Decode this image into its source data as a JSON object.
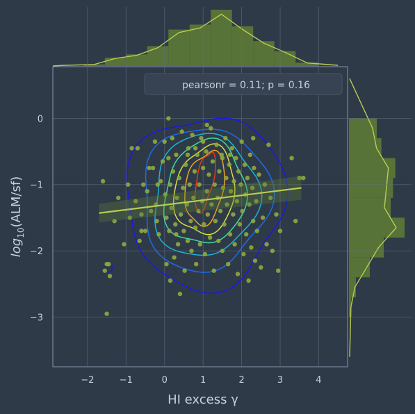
{
  "chart_data": {
    "type": "scatter",
    "subtype": "jointplot-kde",
    "title": "",
    "xlabel": "HI excess γ",
    "ylabel_main": "log",
    "ylabel_sub": "10",
    "ylabel_rest": "(ALM/sf)",
    "xlim": [
      -2.9,
      4.75
    ],
    "ylim": [
      -3.75,
      0.78
    ],
    "xticks": [
      -2,
      -1,
      0,
      1,
      2,
      3,
      4
    ],
    "yticks": [
      0,
      -1,
      -2,
      -3
    ],
    "xtick_labels": [
      "−2",
      "−1",
      "0",
      "1",
      "2",
      "3",
      "4"
    ],
    "ytick_labels": [
      "0",
      "−1",
      "−2",
      "−3"
    ],
    "grid": true,
    "annotation": "pearsonr = 0.11; p = 0.16",
    "annotation_placement": "upper-right",
    "regression_line": {
      "x": [
        -1.7,
        3.55
      ],
      "y": [
        -1.43,
        -1.05
      ]
    },
    "colors": {
      "background": "#2f3a48",
      "grid": "#5f6f85",
      "point": "#8faa3e",
      "marginal_bar": "#5d7a36",
      "regression": "#b9cc52",
      "contour_levels": [
        "#1a1ae0",
        "#1d6be8",
        "#18b4d8",
        "#3fdc9e",
        "#d6e23c",
        "#f0a21e",
        "#e03c1c"
      ]
    },
    "points": [
      [
        -1.6,
        -0.95
      ],
      [
        -1.55,
        -2.3
      ],
      [
        -1.5,
        -2.2
      ],
      [
        -1.45,
        -2.2
      ],
      [
        -1.42,
        -2.38
      ],
      [
        -1.5,
        -2.95
      ],
      [
        -1.3,
        -1.55
      ],
      [
        -1.2,
        -1.2
      ],
      [
        -1.05,
        -1.9
      ],
      [
        -0.95,
        -1.0
      ],
      [
        -0.9,
        -1.5
      ],
      [
        -0.85,
        -0.45
      ],
      [
        -0.75,
        -1.25
      ],
      [
        -0.7,
        -0.45
      ],
      [
        -0.65,
        -1.85
      ],
      [
        -0.6,
        -1.45
      ],
      [
        -0.55,
        -1.0
      ],
      [
        -0.5,
        -1.7
      ],
      [
        -0.45,
        -1.1
      ],
      [
        -0.4,
        -0.75
      ],
      [
        -0.35,
        -1.4
      ],
      [
        -0.3,
        -0.75
      ],
      [
        -0.25,
        -0.35
      ],
      [
        -0.22,
        -1.3
      ],
      [
        -0.2,
        -1.55
      ],
      [
        -0.18,
        -1.0
      ],
      [
        -0.15,
        -1.75
      ],
      [
        -0.1,
        -0.95
      ],
      [
        -0.05,
        -0.65
      ],
      [
        0.0,
        -0.35
      ],
      [
        0.02,
        -1.15
      ],
      [
        0.05,
        -1.5
      ],
      [
        0.05,
        -2.2
      ],
      [
        0.1,
        -0.6
      ],
      [
        0.1,
        0.0
      ],
      [
        0.12,
        -1.7
      ],
      [
        0.15,
        -1.0
      ],
      [
        0.15,
        -2.45
      ],
      [
        0.18,
        -1.35
      ],
      [
        0.2,
        -0.3
      ],
      [
        0.22,
        -0.8
      ],
      [
        0.25,
        -2.1
      ],
      [
        0.28,
        -1.6
      ],
      [
        0.3,
        -0.55
      ],
      [
        0.32,
        -1.2
      ],
      [
        0.35,
        -1.9
      ],
      [
        0.38,
        -0.9
      ],
      [
        0.4,
        -2.65
      ],
      [
        0.42,
        -1.45
      ],
      [
        0.45,
        -0.2
      ],
      [
        0.48,
        -1.05
      ],
      [
        0.5,
        -1.7
      ],
      [
        0.52,
        -2.3
      ],
      [
        0.55,
        -0.7
      ],
      [
        0.58,
        -1.3
      ],
      [
        0.6,
        -1.85
      ],
      [
        0.62,
        -0.45
      ],
      [
        0.65,
        -1.0
      ],
      [
        0.68,
        -1.55
      ],
      [
        0.7,
        -2.0
      ],
      [
        0.72,
        -0.25
      ],
      [
        0.75,
        -1.2
      ],
      [
        0.78,
        -0.8
      ],
      [
        0.8,
        -1.65
      ],
      [
        0.82,
        -2.2
      ],
      [
        0.85,
        -0.55
      ],
      [
        0.88,
        -1.4
      ],
      [
        0.9,
        -1.0
      ],
      [
        0.92,
        -1.9
      ],
      [
        0.95,
        -0.3
      ],
      [
        0.98,
        -1.25
      ],
      [
        1.0,
        -0.75
      ],
      [
        1.02,
        -1.6
      ],
      [
        1.05,
        -2.05
      ],
      [
        1.08,
        -0.5
      ],
      [
        1.1,
        -1.1
      ],
      [
        1.12,
        -1.45
      ],
      [
        1.15,
        -0.85
      ],
      [
        1.18,
        -1.8
      ],
      [
        1.2,
        -0.15
      ],
      [
        1.22,
        -1.3
      ],
      [
        1.25,
        -0.65
      ],
      [
        1.28,
        -2.3
      ],
      [
        1.3,
        -1.0
      ],
      [
        1.32,
        -1.55
      ],
      [
        1.35,
        -0.4
      ],
      [
        1.38,
        -1.2
      ],
      [
        1.4,
        -1.85
      ],
      [
        1.42,
        -0.8
      ],
      [
        1.45,
        -1.4
      ],
      [
        1.48,
        -0.55
      ],
      [
        1.5,
        -2.0
      ],
      [
        1.52,
        -1.05
      ],
      [
        1.55,
        -1.6
      ],
      [
        1.58,
        -0.3
      ],
      [
        1.6,
        -0.9
      ],
      [
        1.62,
        -1.3
      ],
      [
        1.65,
        -2.2
      ],
      [
        1.68,
        -0.7
      ],
      [
        1.7,
        -1.75
      ],
      [
        1.72,
        -1.1
      ],
      [
        1.75,
        -0.45
      ],
      [
        1.78,
        -1.45
      ],
      [
        1.8,
        -0.95
      ],
      [
        1.82,
        -1.9
      ],
      [
        1.85,
        -0.6
      ],
      [
        1.88,
        -1.25
      ],
      [
        1.9,
        -2.35
      ],
      [
        1.92,
        -0.8
      ],
      [
        1.95,
        -1.6
      ],
      [
        1.98,
        -1.0
      ],
      [
        2.0,
        -0.35
      ],
      [
        2.02,
        -1.4
      ],
      [
        2.05,
        -2.05
      ],
      [
        2.08,
        -0.7
      ],
      [
        2.1,
        -1.15
      ],
      [
        2.12,
        -1.75
      ],
      [
        2.15,
        -0.9
      ],
      [
        2.18,
        -2.45
      ],
      [
        2.2,
        -1.3
      ],
      [
        2.22,
        -0.55
      ],
      [
        2.25,
        -1.95
      ],
      [
        2.28,
        -1.05
      ],
      [
        2.3,
        -1.55
      ],
      [
        2.32,
        -0.75
      ],
      [
        2.35,
        -2.15
      ],
      [
        2.38,
        -1.25
      ],
      [
        2.4,
        -1.7
      ],
      [
        2.45,
        -0.85
      ],
      [
        2.5,
        -2.25
      ],
      [
        2.55,
        -1.5
      ],
      [
        2.6,
        -1.0
      ],
      [
        2.65,
        -1.9
      ],
      [
        2.7,
        -0.4
      ],
      [
        2.75,
        -1.2
      ],
      [
        2.8,
        -2.0
      ],
      [
        2.9,
        -1.45
      ],
      [
        2.95,
        -2.3
      ],
      [
        3.0,
        -1.7
      ],
      [
        3.3,
        -0.6
      ],
      [
        3.4,
        -1.55
      ],
      [
        3.5,
        -0.9
      ],
      [
        3.6,
        -0.9
      ],
      [
        -0.6,
        -1.7
      ],
      [
        0.3,
        -1.75
      ],
      [
        0.6,
        -0.55
      ],
      [
        1.0,
        -0.35
      ],
      [
        1.1,
        -0.1
      ],
      [
        1.5,
        -0.6
      ],
      [
        1.7,
        -0.55
      ],
      [
        0.8,
        -0.45
      ],
      [
        2.3,
        -0.3
      ]
    ],
    "marginal_x": {
      "bin_edges": [
        -2.1,
        -1.55,
        -1.0,
        -0.45,
        0.1,
        0.65,
        1.2,
        1.75,
        2.3,
        2.85,
        3.4,
        4.0
      ],
      "counts": [
        1,
        5,
        7,
        12,
        22,
        25,
        34,
        24,
        15,
        9,
        2
      ]
    },
    "marginal_y": {
      "bin_edges": [
        -3.0,
        -2.7,
        -2.4,
        -2.1,
        -1.8,
        -1.5,
        -1.2,
        -0.9,
        -0.6,
        -0.3,
        0.0
      ],
      "counts": [
        1,
        3,
        9,
        15,
        24,
        18,
        19,
        20,
        14,
        12
      ]
    }
  }
}
